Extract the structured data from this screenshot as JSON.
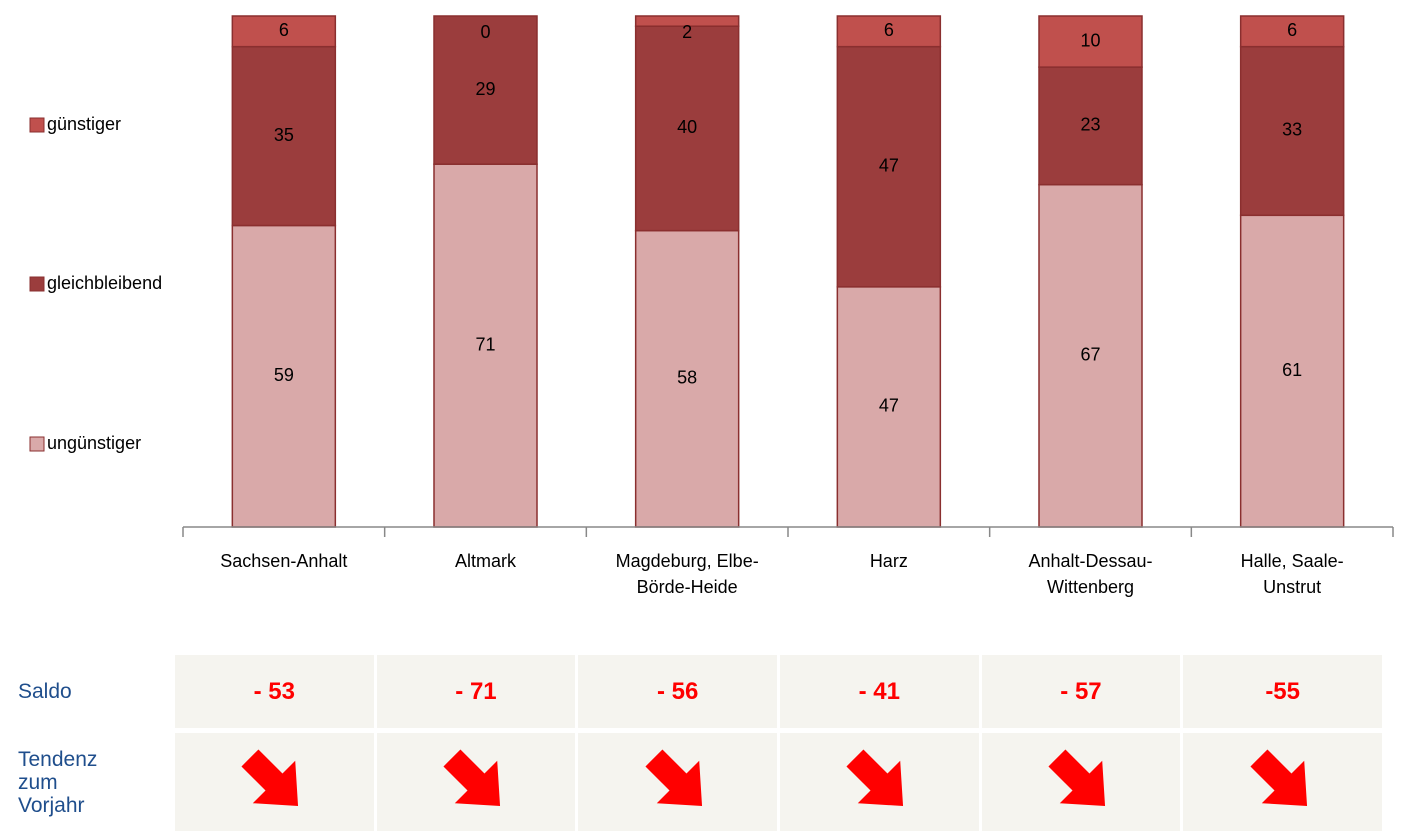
{
  "chart_data": {
    "type": "stacked-bar",
    "categories": [
      "Sachsen-Anhalt",
      "Altmark",
      "Magdeburg, Elbe-Börde-Heide",
      "Harz",
      "Anhalt-Dessau-Wittenberg",
      "Halle, Saale-Unstrut"
    ],
    "series": [
      {
        "name": "ungünstiger",
        "color": "#d9a9a9",
        "values": [
          59,
          71,
          58,
          47,
          67,
          61
        ]
      },
      {
        "name": "gleichbleibend",
        "color": "#9b3d3d",
        "values": [
          35,
          29,
          40,
          47,
          23,
          33
        ]
      },
      {
        "name": "günstiger",
        "color": "#c0504d",
        "values": [
          6,
          0,
          2,
          6,
          10,
          6
        ]
      }
    ],
    "ylim": [
      0,
      100
    ],
    "legend": "left"
  },
  "table": {
    "rows": [
      {
        "label": "Saldo",
        "cells": [
          "- 53",
          "- 71",
          "- 56",
          "- 41",
          "- 57",
          "-55"
        ]
      },
      {
        "label": "Tendenz zum Vorjahr"
      }
    ]
  }
}
